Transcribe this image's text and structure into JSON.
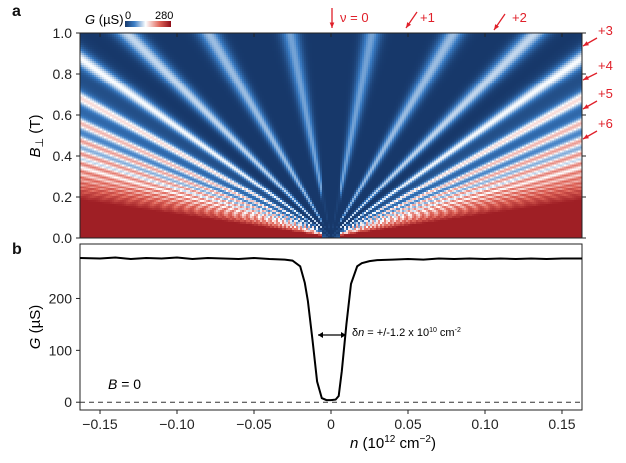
{
  "panel_labels": {
    "a": "a",
    "b": "b"
  },
  "colors": {
    "low": "#17386a",
    "mid": "#ffffff",
    "high": "#b3121e",
    "annotation": "#e0202a",
    "curve": "#000000"
  },
  "chart_data": [
    {
      "type": "heatmap",
      "panel": "a",
      "xlabel": "",
      "ylabel_main": "B",
      "ylabel_sub": "⊥",
      "ylabel_unit": " (T)",
      "xlim": [
        -0.163,
        0.163
      ],
      "ylim": [
        0.0,
        1.0
      ],
      "yticks": [
        "0.0",
        "0.2",
        "0.4",
        "0.6",
        "0.8",
        "1.0"
      ],
      "yticks_values": [
        0,
        0.2,
        0.4,
        0.6,
        0.8,
        1.0
      ],
      "colorbar": {
        "label_main": "G",
        "label_unit": " (µS)",
        "min": 0,
        "max": 280,
        "min_label": "0",
        "max_label": "280",
        "colormap": "blue-white-red"
      },
      "annotations": [
        {
          "text": "ν = 0",
          "n": 0.0,
          "direction": "down"
        },
        {
          "text": "+1",
          "n": 0.048,
          "direction": "down-left"
        },
        {
          "text": "+2",
          "n": 0.106,
          "direction": "down-left"
        },
        {
          "text": "+3",
          "B": 0.95,
          "direction": "down-left"
        },
        {
          "text": "+4",
          "B": 0.77,
          "direction": "down-left"
        },
        {
          "text": "+5",
          "B": 0.63,
          "direction": "down-left"
        },
        {
          "text": "+6",
          "B": 0.49,
          "direction": "down-left"
        }
      ]
    },
    {
      "type": "line",
      "panel": "b",
      "xlabel_main": "n",
      "xlabel_unit": " (10",
      "xlabel_exp": "12",
      "xlabel_unit2": " cm",
      "xlabel_exp2": "−2",
      "xlabel_close": ")",
      "ylabel_main": "G",
      "ylabel_unit": " (µS)",
      "xlim": [
        -0.163,
        0.163
      ],
      "ylim": [
        -15,
        305
      ],
      "xticks": [
        "−0.15",
        "−0.10",
        "−0.05",
        "0",
        "0.05",
        "0.10",
        "0.15"
      ],
      "xticks_values": [
        -0.15,
        -0.1,
        -0.05,
        0,
        0.05,
        0.1,
        0.15
      ],
      "yticks": [
        "0",
        "100",
        "200"
      ],
      "yticks_values": [
        0,
        100,
        200
      ],
      "series": [
        {
          "x": [
            -0.163,
            -0.15,
            -0.14,
            -0.13,
            -0.12,
            -0.11,
            -0.1,
            -0.09,
            -0.08,
            -0.07,
            -0.06,
            -0.05,
            -0.04,
            -0.03,
            -0.025,
            -0.02,
            -0.017,
            -0.015,
            -0.012,
            -0.009,
            -0.006,
            -0.003,
            0.0,
            0.003,
            0.005,
            0.007,
            0.01,
            0.013,
            0.017,
            0.02,
            0.025,
            0.03,
            0.04,
            0.05,
            0.06,
            0.07,
            0.08,
            0.09,
            0.1,
            0.11,
            0.12,
            0.13,
            0.14,
            0.15,
            0.163
          ],
          "y": [
            278,
            277,
            279,
            276,
            278,
            277,
            279,
            276,
            278,
            277,
            276,
            278,
            276,
            275,
            273,
            262,
            230,
            195,
            120,
            40,
            8,
            4,
            4,
            5,
            12,
            60,
            150,
            228,
            262,
            268,
            272,
            274,
            275,
            276,
            275,
            277,
            276,
            277,
            276,
            277,
            276,
            277,
            276,
            277,
            277
          ]
        }
      ],
      "reference_line": {
        "y": 0,
        "style": "dashed"
      },
      "annotations": [
        {
          "text_main": "δ",
          "text_italic": "n",
          "text_rest": " = +/-1.2 x 10",
          "text_exp": "10",
          "text_unit": " cm",
          "text_exp2": "-2"
        },
        {
          "text_italic": "B",
          "text_rest": " = 0"
        }
      ]
    }
  ]
}
